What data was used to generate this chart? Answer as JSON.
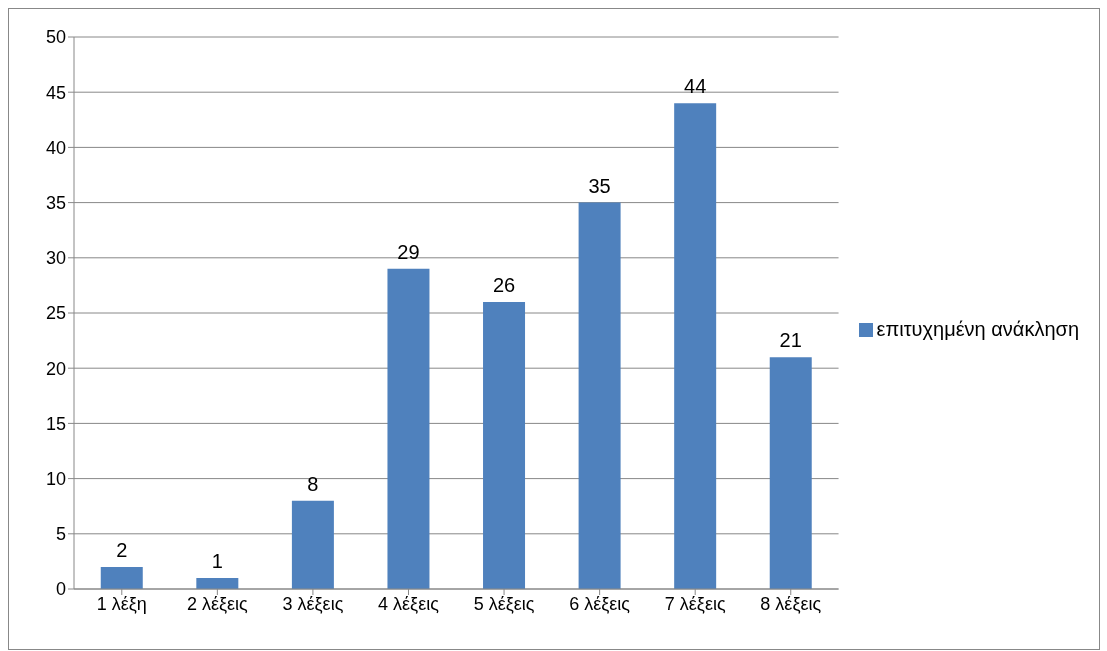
{
  "chart_data": {
    "type": "bar",
    "categories": [
      "1 λέξη",
      "2 λέξεις",
      "3 λέξεις",
      "4 λέξεις",
      "5 λέξεις",
      "6 λέξεις",
      "7 λέξεις",
      "8 λέξεις"
    ],
    "series": [
      {
        "name": "επιτυχημένη ανάκληση",
        "color": "#4f81bd",
        "values": [
          2,
          1,
          8,
          29,
          26,
          35,
          44,
          21
        ]
      }
    ],
    "ylim": [
      0,
      50
    ],
    "yticks": [
      0,
      5,
      10,
      15,
      20,
      25,
      30,
      35,
      40,
      45,
      50
    ],
    "grid": "y",
    "legend": "right",
    "data_labels": true
  }
}
